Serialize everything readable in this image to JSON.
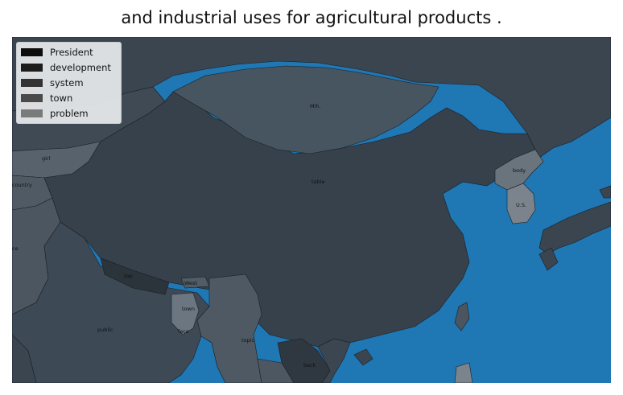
{
  "title": "and industrial uses for agricultural products .",
  "colors": {
    "ocean": "#1f77b4",
    "land_default": "#3d4a55",
    "border": "#1a1f24"
  },
  "legend": {
    "items": [
      {
        "label": "President",
        "color": "#0d0d0d"
      },
      {
        "label": "development",
        "color": "#1c1c1c"
      },
      {
        "label": "system",
        "color": "#333333"
      },
      {
        "label": "town",
        "color": "#4a4a4a"
      },
      {
        "label": "problem",
        "color": "#7a7a7a"
      }
    ]
  },
  "regions": {
    "mongolia": "Mih.",
    "china": "table",
    "north_korea": "body",
    "south_korea": "U.S.",
    "nepal": "top",
    "bhutan": "West",
    "bangladesh": "town",
    "india": "public",
    "myanmar": "topic",
    "laos": "back",
    "kyrgyzstan": "girl",
    "tajikistan": "country",
    "west_edge": "ce",
    "india_east": "face"
  }
}
